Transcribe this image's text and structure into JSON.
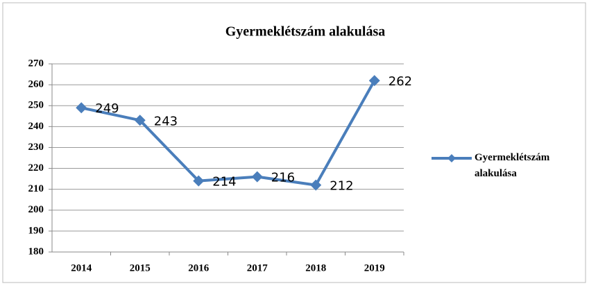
{
  "chart_data": {
    "type": "line",
    "title": "Gyermeklétszám alakulása",
    "categories": [
      "2014",
      "2015",
      "2016",
      "2017",
      "2018",
      "2019"
    ],
    "series": [
      {
        "name": "Gyermeklétszám alakulása",
        "color": "#4a7ebb",
        "values": [
          249,
          243,
          214,
          216,
          212,
          262
        ]
      }
    ],
    "ylim": [
      180,
      270
    ],
    "yticks": [
      180,
      190,
      200,
      210,
      220,
      230,
      240,
      250,
      260,
      270
    ],
    "grid": true,
    "legend": "right",
    "data_labels": true
  }
}
